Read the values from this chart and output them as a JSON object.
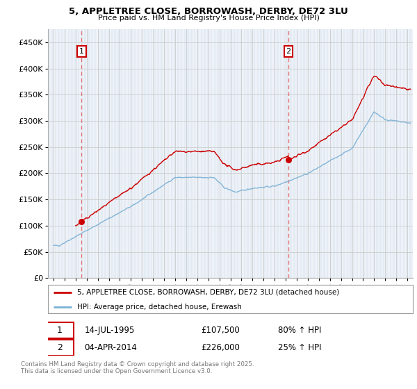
{
  "title": "5, APPLETREE CLOSE, BORROWASH, DERBY, DE72 3LU",
  "subtitle": "Price paid vs. HM Land Registry's House Price Index (HPI)",
  "property_label": "5, APPLETREE CLOSE, BORROWASH, DERBY, DE72 3LU (detached house)",
  "hpi_label": "HPI: Average price, detached house, Erewash",
  "sale1_date": "14-JUL-1995",
  "sale1_price": "£107,500",
  "sale1_hpi": "80% ↑ HPI",
  "sale2_date": "04-APR-2014",
  "sale2_price": "£226,000",
  "sale2_hpi": "25% ↑ HPI",
  "footer": "Contains HM Land Registry data © Crown copyright and database right 2025.\nThis data is licensed under the Open Government Licence v3.0.",
  "ylim": [
    0,
    475000
  ],
  "yticks": [
    0,
    50000,
    100000,
    150000,
    200000,
    250000,
    300000,
    350000,
    400000,
    450000
  ],
  "xlim_start": 1992.5,
  "xlim_end": 2025.5,
  "sale1_x": 1995.54,
  "sale1_y": 107500,
  "sale2_x": 2014.25,
  "sale2_y": 226000,
  "property_color": "#cc0000",
  "hpi_color": "#7ab0d4",
  "dashed_line_color": "#e06060",
  "grid_color": "#cccccc",
  "annotation_box_color": "#cc0000",
  "hatch_color": "#dce6f0",
  "hatch_bg": "#eef2f8"
}
